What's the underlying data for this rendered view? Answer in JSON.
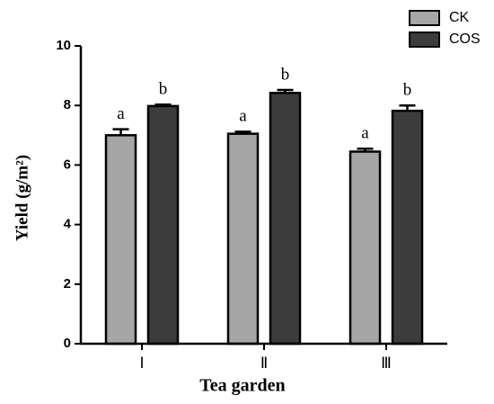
{
  "chart_data": {
    "type": "bar",
    "x_label": "Tea garden",
    "y_label": "Yield (g/m²)",
    "categories": [
      "Ⅰ",
      "Ⅱ",
      "Ⅲ"
    ],
    "series": [
      {
        "name": "CK",
        "color": "#a6a6a6",
        "values": [
          7.0,
          7.05,
          6.45
        ],
        "errors": [
          0.2,
          0.07,
          0.1
        ],
        "letters": [
          "a",
          "a",
          "a"
        ]
      },
      {
        "name": "COS",
        "color": "#3c3c3c",
        "values": [
          7.98,
          8.42,
          7.82
        ],
        "errors": [
          0.05,
          0.1,
          0.18
        ],
        "letters": [
          "b",
          "b",
          "b"
        ]
      }
    ],
    "ylim": [
      0,
      10
    ],
    "yticks": [
      0,
      2,
      4,
      6,
      8,
      10
    ],
    "legend": "top-right"
  }
}
